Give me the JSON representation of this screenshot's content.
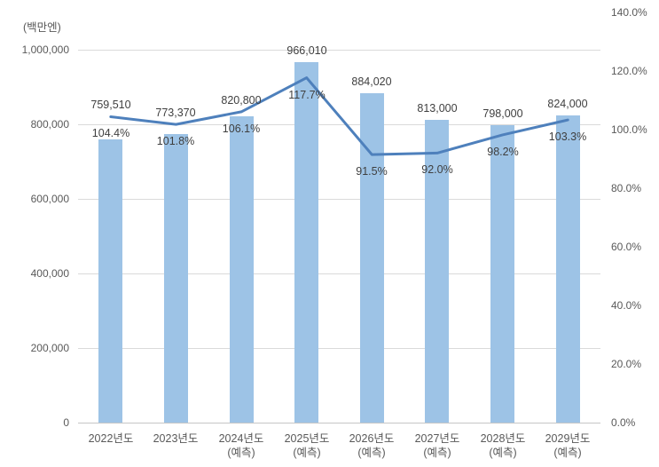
{
  "unit_label": "(백만엔)",
  "colors": {
    "bar": "#9DC3E6",
    "line": "#4E80BC",
    "grid": "#DADADA",
    "axis_line": "#C6C6C6",
    "axis_text": "#595959",
    "data_label_text": "#3F3F3F"
  },
  "chart_data": {
    "type": "bar",
    "subtype": "combo-bar-with-line",
    "title": "",
    "xlabel": "",
    "ylabel_left_unit": "(백만엔)",
    "grid": true,
    "legend": false,
    "categories": [
      "2022년도",
      "2023년도",
      "2024년도",
      "2025년도",
      "2026년도",
      "2027년도",
      "2028년도",
      "2029년도"
    ],
    "category_sublabels": [
      "",
      "",
      "(예측)",
      "(예측)",
      "(예측)",
      "(예측)",
      "(예측)",
      "(예측)"
    ],
    "series": [
      {
        "role": "bars",
        "axis": "left",
        "values": [
          759510,
          773370,
          820800,
          966010,
          884020,
          813000,
          798000,
          824000
        ],
        "labels": [
          "759,510",
          "773,370",
          "820,800",
          "966,010",
          "884,020",
          "813,000",
          "798,000",
          "824,000"
        ]
      },
      {
        "role": "line",
        "axis": "right",
        "values": [
          104.4,
          101.8,
          106.1,
          117.7,
          91.5,
          92.0,
          98.2,
          103.3
        ],
        "labels": [
          "104.4%",
          "101.8%",
          "106.1%",
          "117.7%",
          "91.5%",
          "92.0%",
          "98.2%",
          "103.3%"
        ]
      }
    ],
    "left_axis": {
      "tick_labels": [
        "0",
        "200,000",
        "400,000",
        "600,000",
        "800,000",
        "1,000,000"
      ],
      "tick_values": [
        0,
        200000,
        400000,
        600000,
        800000,
        1000000
      ],
      "ylim": [
        0,
        1100000
      ]
    },
    "right_axis": {
      "tick_labels": [
        "0.0%",
        "20.0%",
        "40.0%",
        "60.0%",
        "80.0%",
        "100.0%",
        "120.0%",
        "140.0%"
      ],
      "tick_values": [
        0,
        20,
        40,
        60,
        80,
        100,
        120,
        140
      ],
      "ylim": [
        0,
        140
      ]
    }
  }
}
